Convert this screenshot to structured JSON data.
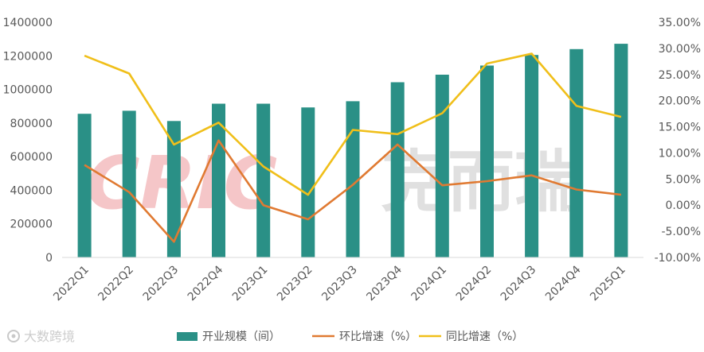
{
  "watermark": {
    "logo_text": "CRIC",
    "brand_text": "克而瑞"
  },
  "footer": {
    "source": "大数跨境"
  },
  "chart_data": {
    "type": "bar+line",
    "categories": [
      "2022Q1",
      "2022Q2",
      "2022Q3",
      "2022Q4",
      "2023Q1",
      "2023Q2",
      "2023Q3",
      "2023Q4",
      "2024Q1",
      "2024Q2",
      "2024Q3",
      "2024Q4",
      "2025Q1"
    ],
    "series": [
      {
        "name": "开业规模（间）",
        "type": "bar",
        "axis": "left",
        "color": "#2a9086",
        "values": [
          855000,
          873000,
          812000,
          915000,
          915000,
          893000,
          930000,
          1043000,
          1088000,
          1142000,
          1205000,
          1240000,
          1272000
        ]
      },
      {
        "name": "环比增速（%）",
        "type": "line",
        "axis": "right",
        "color": "#e07a32",
        "values": [
          7.7,
          2.5,
          -7.0,
          12.4,
          0.0,
          -2.7,
          3.9,
          11.6,
          3.8,
          4.6,
          5.7,
          3.0,
          2.0
        ]
      },
      {
        "name": "同比增速（%）",
        "type": "line",
        "axis": "right",
        "color": "#f0bf1a",
        "values": [
          28.6,
          25.2,
          11.6,
          15.8,
          7.4,
          2.0,
          14.4,
          13.6,
          17.6,
          27.1,
          29.0,
          19.0,
          16.9
        ]
      }
    ],
    "left_axis": {
      "min": 0,
      "max": 1400000,
      "step": 200000,
      "tick_labels": [
        "0",
        "200000",
        "400000",
        "600000",
        "800000",
        "1000000",
        "1200000",
        "1400000"
      ]
    },
    "right_axis": {
      "min": -10,
      "max": 35,
      "step": 5,
      "tick_labels": [
        "-10.00%",
        "-5.00%",
        "0.00%",
        "5.00%",
        "10.00%",
        "15.00%",
        "20.00%",
        "25.00%",
        "30.00%",
        "35.00%"
      ]
    },
    "legend_position": "bottom"
  }
}
